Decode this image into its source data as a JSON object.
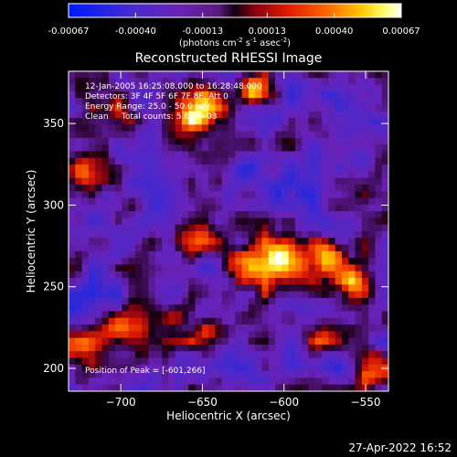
{
  "colorbar": {
    "tick_labels": [
      "-0.00067",
      "-0.00040",
      "-0.00013",
      "0.00013",
      "0.00040",
      "0.00067"
    ],
    "tick_values": [
      -0.00067,
      -0.0004,
      -0.00013,
      0.00013,
      0.0004,
      0.00067
    ],
    "range": [
      -0.00067,
      0.00067
    ],
    "unit_label": "(photons cm",
    "unit_exp1": "-2",
    "unit_s": " s",
    "unit_exp2": "-1",
    "unit_asec": " asec",
    "unit_exp3": "-2",
    "unit_close": ")"
  },
  "chart_data": {
    "type": "heatmap",
    "title": "Reconstructed RHESSI Image",
    "xlabel": "Heliocentric X (arcsec)",
    "ylabel": "Heliocentric Y (arcsec)",
    "xlim": [
      -732,
      -536
    ],
    "ylim": [
      186,
      382
    ],
    "xticks": [
      -700,
      -650,
      -600,
      -550
    ],
    "xtick_labels": [
      "−700",
      "−650",
      "−600",
      "−550"
    ],
    "yticks": [
      200,
      250,
      300,
      350
    ],
    "ytick_labels": [
      "200",
      "250",
      "300",
      "350"
    ],
    "grid": false,
    "colormap": "blue-purple-red-yellow-white (RHESSI)",
    "annotations": [
      "12-Jan-2005 16:25:08.000 to 16:28:48.000",
      "Detectors: 3F 4F 5F 6F 7F 8F, Att 0",
      "Energy Range: 25.0 - 50.0 keV",
      "Clean     Total counts: 5.67E+03"
    ],
    "peak_label": "Position of Peak = [-601,266]",
    "peak": {
      "x": -601,
      "y": 266
    },
    "total_counts": 5670,
    "energy_range_kev": [
      25.0,
      50.0
    ]
  },
  "footer": {
    "timestamp": "27-Apr-2022 16:52"
  }
}
